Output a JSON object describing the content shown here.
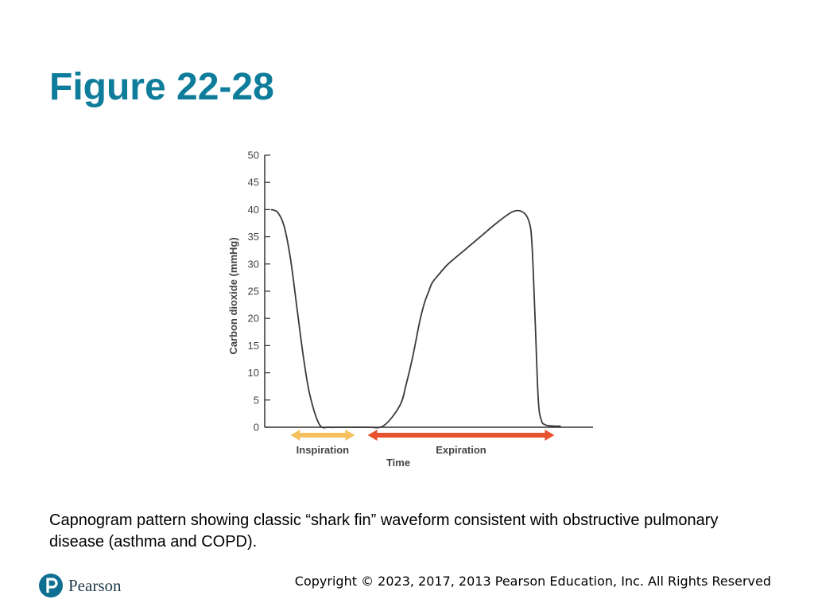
{
  "slide": {
    "title": "Figure 22-28",
    "caption": "Capnogram pattern showing classic “shark fin” waveform consistent with obstructive pulmonary disease (asthma and COPD).",
    "logo_text": "Pearson",
    "copyright": "Copyright © 2023, 2017, 2013 Pearson Education, Inc. All Rights Reserved"
  },
  "chart_data": {
    "type": "line",
    "ylabel": "Carbon dioxide (mmHg)",
    "xlabel": "Time",
    "ylim": [
      0,
      50
    ],
    "yticks": [
      0,
      5,
      10,
      15,
      20,
      25,
      30,
      35,
      40,
      45,
      50
    ],
    "grid": false,
    "series": [
      {
        "x": [
          0,
          2,
          4,
          6,
          8,
          10,
          12,
          15,
          18,
          21,
          25,
          30,
          35,
          40,
          42,
          44,
          46,
          47,
          48,
          49,
          50,
          52,
          55,
          60,
          65,
          70,
          75,
          78,
          80,
          81,
          82,
          83,
          84,
          85,
          86,
          88,
          90
        ],
        "y": [
          40,
          39.5,
          37,
          31,
          22,
          13,
          6,
          0.5,
          0,
          0,
          0,
          0,
          0.3,
          4,
          8,
          13,
          19,
          21.5,
          23.5,
          25,
          26.5,
          28,
          30,
          32.5,
          35,
          37.5,
          39.6,
          39.6,
          38,
          34,
          20,
          5,
          1.2,
          0.5,
          0.3,
          0.2,
          0.2
        ],
        "color": "#3a3a3a"
      }
    ],
    "phases": [
      {
        "label": "Inspiration",
        "x_start": 6,
        "x_end": 26,
        "color": "#f5c15e"
      },
      {
        "label": "Expiration",
        "x_start": 30,
        "x_end": 88,
        "color": "#e8522e"
      }
    ],
    "xlim": [
      -2,
      100
    ]
  }
}
